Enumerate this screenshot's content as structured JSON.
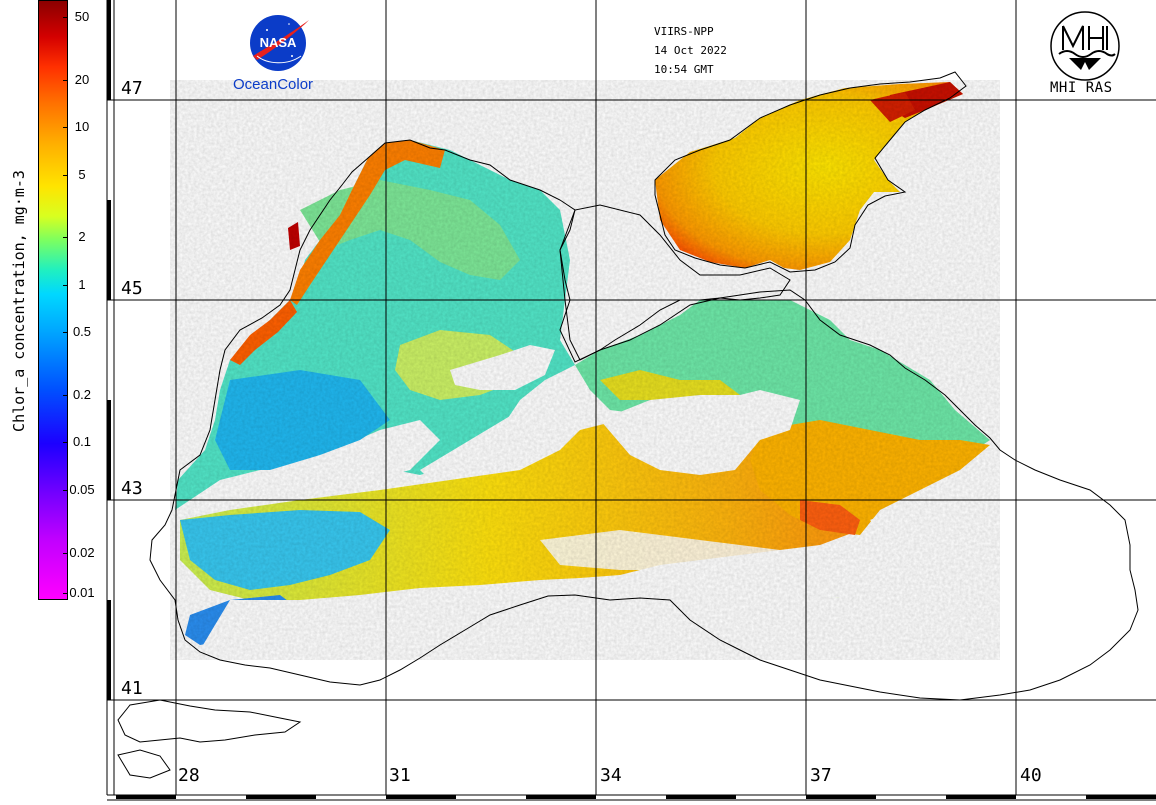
{
  "header": {
    "sensor": "VIIRS-NPP",
    "date": "14 Oct 2022",
    "time": "10:54 GMT"
  },
  "logos": {
    "nasa_wordmark": "NASA",
    "nasa_caption": "OceanColor",
    "mhi_caption": "MHI RAS"
  },
  "colorbar": {
    "title": "Chlor_a concentration, mg·m-3",
    "ticks": [
      "50",
      "20",
      "10",
      "5",
      "2",
      "1",
      "0.5",
      "0.2",
      "0.1",
      "0.05",
      "0.02",
      "0.01"
    ],
    "scale": "log",
    "range": [
      0.01,
      64
    ]
  },
  "latitude_labels": [
    "47",
    "45",
    "43",
    "41"
  ],
  "longitude_labels": [
    "28",
    "31",
    "34",
    "37",
    "40"
  ],
  "colors": {
    "land_background": "#ffffff",
    "gridline": "#000000",
    "coastline": "#000000",
    "nasa_blue": "#0b3cc8",
    "nasa_red": "#e8201c"
  },
  "map_layer": {
    "subject": "Black Sea and Sea of Azov chlorophyll-a satellite composite",
    "cloud_mask_color": "#ffffff"
  }
}
